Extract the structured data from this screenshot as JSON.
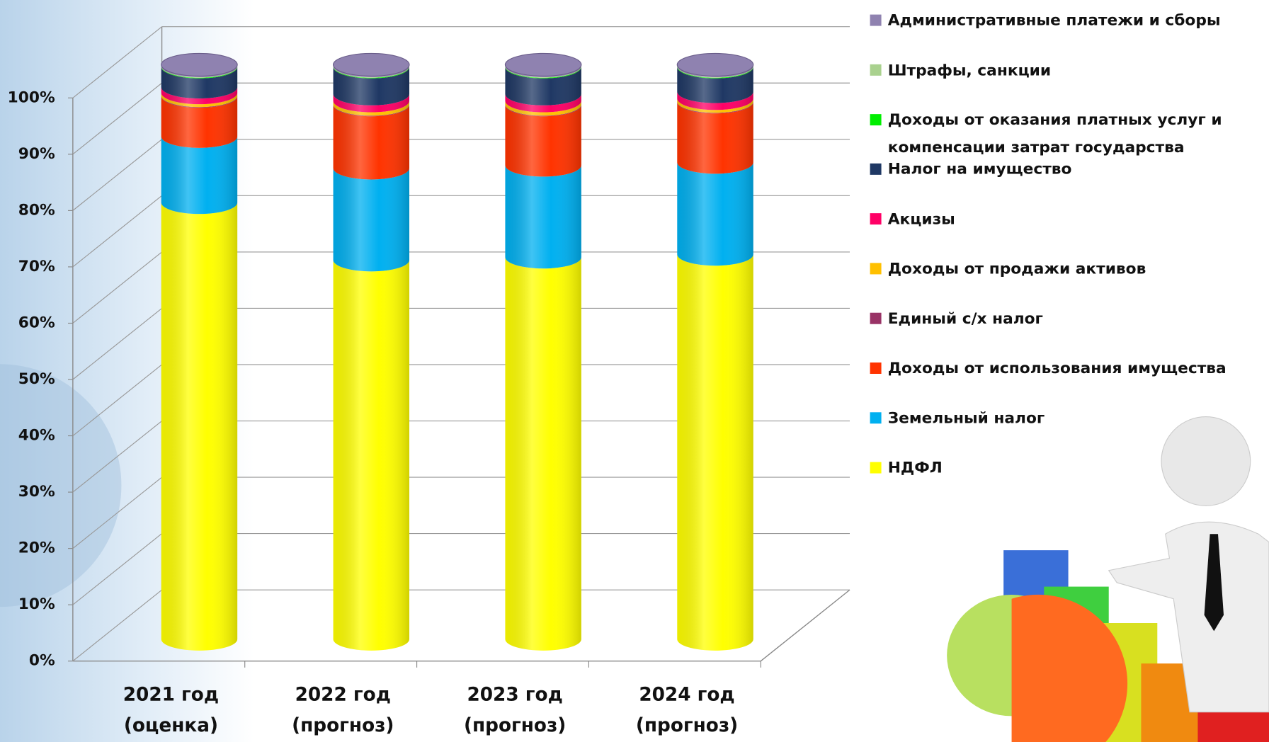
{
  "chart_data": {
    "type": "bar3d_stacked",
    "categories": [
      "2021 год\n(оценка)",
      "2022 год\n(прогноз)",
      "2023 год\n(прогноз)",
      "2024 год\n(прогноз)"
    ],
    "series": [
      {
        "name": "НДФЛ",
        "color": "#ffff00",
        "values": [
          76,
          66,
          66.5,
          67
        ]
      },
      {
        "name": "Земельный налог",
        "color": "#00b0f0",
        "values": [
          11.5,
          16,
          16,
          16
        ]
      },
      {
        "name": "Доходы от использования имущества",
        "color": "#ff3300",
        "values": [
          7,
          11,
          10.5,
          10.5
        ]
      },
      {
        "name": "Единый с/х налог",
        "color": "#993366",
        "values": [
          0.1,
          0.1,
          0.1,
          0.1
        ]
      },
      {
        "name": "Доходы от продажи активов",
        "color": "#ffc000",
        "values": [
          0.5,
          0.6,
          0.6,
          0.5
        ]
      },
      {
        "name": "Акцизы",
        "color": "#ff0066",
        "values": [
          1,
          1.2,
          1.2,
          1.2
        ]
      },
      {
        "name": "Налог на имущество",
        "color": "#1f3864",
        "values": [
          3.5,
          4.7,
          4.7,
          4.3
        ]
      },
      {
        "name": "Доходы от оказания платных услуг и компенсации затрат государства",
        "color": "#00ee00",
        "values": [
          0.1,
          0.1,
          0.1,
          0.1
        ]
      },
      {
        "name": "Штрафы, санкции",
        "color": "#a9d18e",
        "values": [
          0.1,
          0.1,
          0.1,
          0.1
        ]
      },
      {
        "name": "Административные платежи и сборы",
        "color": "#8f82b0",
        "values": [
          0.2,
          0.2,
          0.2,
          0.2
        ]
      }
    ],
    "ylim": [
      0,
      100
    ],
    "yticks": [
      {
        "value": 0,
        "label": "0%"
      },
      {
        "value": 10,
        "label": "10%"
      },
      {
        "value": 20,
        "label": "20%"
      },
      {
        "value": 30,
        "label": "30%"
      },
      {
        "value": 40,
        "label": "40%"
      },
      {
        "value": 50,
        "label": "50%"
      },
      {
        "value": 60,
        "label": "60%"
      },
      {
        "value": 70,
        "label": "70%"
      },
      {
        "value": 80,
        "label": "80%"
      },
      {
        "value": 90,
        "label": "90%"
      },
      {
        "value": 100,
        "label": "100%"
      }
    ],
    "grid": true,
    "legend": "right"
  }
}
